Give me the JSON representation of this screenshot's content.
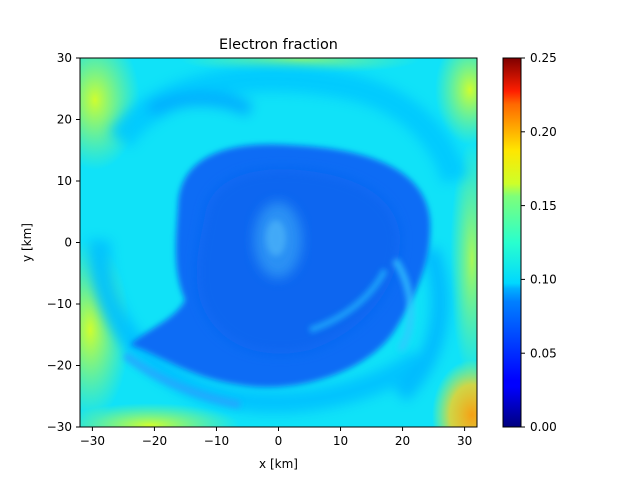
{
  "chart_data": {
    "type": "heatmap",
    "title": "Electron fraction",
    "xlabel": "x [km]",
    "ylabel": "y [km]",
    "xlim": [
      -32,
      32
    ],
    "ylim": [
      -30,
      30
    ],
    "x_ticks": [
      {
        "value": -30,
        "label": "−30"
      },
      {
        "value": -20,
        "label": "−20"
      },
      {
        "value": -10,
        "label": "−10"
      },
      {
        "value": 0,
        "label": "0"
      },
      {
        "value": 10,
        "label": "10"
      },
      {
        "value": 20,
        "label": "20"
      },
      {
        "value": 30,
        "label": "30"
      }
    ],
    "y_ticks": [
      {
        "value": -30,
        "label": "−30"
      },
      {
        "value": -20,
        "label": "−20"
      },
      {
        "value": -10,
        "label": "−10"
      },
      {
        "value": 0,
        "label": "0"
      },
      {
        "value": 10,
        "label": "10"
      },
      {
        "value": 20,
        "label": "20"
      },
      {
        "value": 30,
        "label": "30"
      }
    ],
    "colorbar": {
      "colormap": "jet",
      "range": [
        0.0,
        0.25
      ],
      "ticks": [
        {
          "value": 0.0,
          "label": "0.00"
        },
        {
          "value": 0.05,
          "label": "0.05"
        },
        {
          "value": 0.1,
          "label": "0.10"
        },
        {
          "value": 0.15,
          "label": "0.15"
        },
        {
          "value": 0.2,
          "label": "0.20"
        },
        {
          "value": 0.25,
          "label": "0.25"
        }
      ]
    },
    "grid": false,
    "field_features": {
      "background_value": 0.1,
      "core_value": 0.06,
      "core_center_km": [
        0,
        0
      ],
      "core_radius_km": 17,
      "inner_ring_value": 0.09,
      "outer_edge_value": 0.13,
      "hot_corner_value": 0.19,
      "hot_corner_km": [
        32,
        -30
      ]
    }
  }
}
